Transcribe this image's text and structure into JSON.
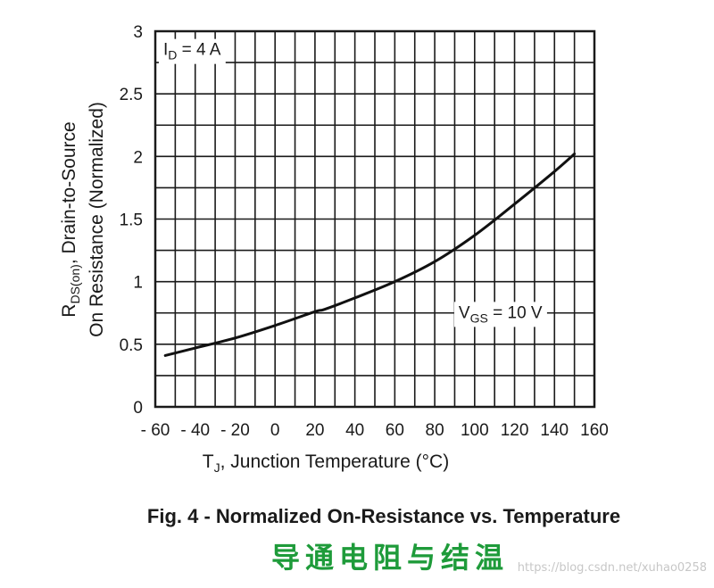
{
  "chart_data": {
    "type": "line",
    "title": "Fig. 4 - Normalized On-Resistance vs. Temperature",
    "subtitle": "导通电阻与结温",
    "xlabel": {
      "main": "T",
      "sub": "J",
      "rest": ", Junction Temperature (°C)"
    },
    "ylabel": {
      "line1_main": "R",
      "line1_sub": "DS(on)",
      "line1_rest": ", Drain-to-Source",
      "line2": "On Resistance (Normalized)"
    },
    "xlim": [
      -60,
      160
    ],
    "ylim": [
      0,
      3
    ],
    "x_ticks": [
      -60,
      -40,
      -20,
      0,
      20,
      40,
      60,
      80,
      100,
      120,
      140,
      160
    ],
    "x_tick_labels": [
      "- 60",
      "- 40",
      "- 20",
      "0",
      "20",
      "40",
      "60",
      "80",
      "100",
      "120",
      "140",
      "160"
    ],
    "y_ticks": [
      0,
      0.5,
      1,
      1.5,
      2,
      2.5,
      3
    ],
    "y_tick_labels": [
      "0",
      "0.5",
      "1",
      "1.5",
      "2",
      "2.5",
      "3"
    ],
    "x_minor_step": 10,
    "y_minor_step": 0.25,
    "grid": true,
    "series": [
      {
        "color": "#111111",
        "x": [
          -55,
          -40,
          -20,
          0,
          20,
          25,
          40,
          60,
          80,
          100,
          120,
          140,
          150
        ],
        "y": [
          0.41,
          0.47,
          0.55,
          0.65,
          0.76,
          0.78,
          0.87,
          1.0,
          1.16,
          1.37,
          1.62,
          1.88,
          2.02
        ]
      }
    ],
    "annotations": [
      {
        "main": "I",
        "sub": "D",
        "rest": " = 4 A",
        "x": -56,
        "y": 2.81
      },
      {
        "main": "V",
        "sub": "GS",
        "rest": " = 10 V",
        "x": 92,
        "y": 0.71
      }
    ]
  },
  "watermark": "https://blog.csdn.net/xuhao0258"
}
